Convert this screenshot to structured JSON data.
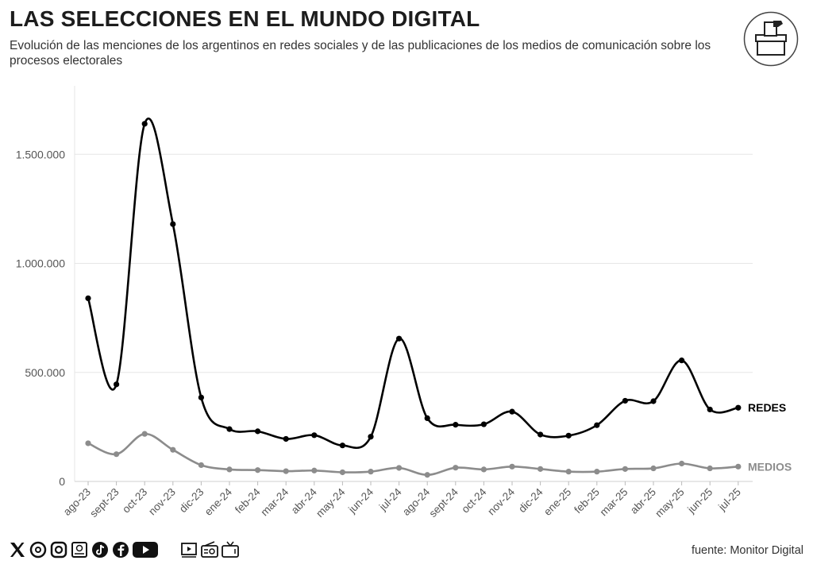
{
  "header": {
    "title": "LAS SELECCIONES EN EL MUNDO DIGITAL",
    "subtitle": "Evolución de las menciones de los argentinos en redes sociales y de las publicaciones de los medios de comunicación sobre los procesos electorales"
  },
  "footer": {
    "source": "fuente: Monitor Digital",
    "icons": [
      "x-icon",
      "threads-icon",
      "instagram-icon",
      "newspaper-icon",
      "tiktok-icon",
      "facebook-icon",
      "youtube-icon",
      "video-icon",
      "radio-icon",
      "tv-icon"
    ]
  },
  "colors": {
    "redes": "#000000",
    "medios": "#8c8c8c",
    "grid": "#e6e6e6",
    "axis": "#555555"
  },
  "chart_data": {
    "type": "line",
    "title": "",
    "xlabel": "",
    "ylabel": "",
    "categories": [
      "ago-23",
      "sept-23",
      "oct-23",
      "nov-23",
      "dic-23",
      "ene-24",
      "feb-24",
      "mar-24",
      "abr-24",
      "may-24",
      "jun-24",
      "jul-24",
      "ago-24",
      "sept-24",
      "oct-24",
      "nov-24",
      "dic-24",
      "ene-25",
      "feb-25",
      "mar-25",
      "abr-25",
      "may-25",
      "jun-25",
      "jul-25"
    ],
    "ylim": [
      0,
      1800000
    ],
    "yticks": [
      0,
      500000,
      1000000,
      1500000
    ],
    "ytick_labels": [
      "0",
      "500.000",
      "1.000.000",
      "1.500.000"
    ],
    "series": [
      {
        "name": "REDES",
        "values": [
          840000,
          445000,
          1640000,
          1180000,
          385000,
          240000,
          230000,
          195000,
          212000,
          165000,
          205000,
          655000,
          290000,
          260000,
          262000,
          320000,
          215000,
          210000,
          258000,
          370000,
          368000,
          555000,
          330000,
          338000
        ]
      },
      {
        "name": "MEDIOS",
        "values": [
          175000,
          125000,
          218000,
          145000,
          75000,
          55000,
          52000,
          47000,
          50000,
          42000,
          45000,
          62000,
          30000,
          63000,
          55000,
          68000,
          57000,
          45000,
          45000,
          57000,
          60000,
          82000,
          60000,
          68000
        ]
      }
    ]
  }
}
